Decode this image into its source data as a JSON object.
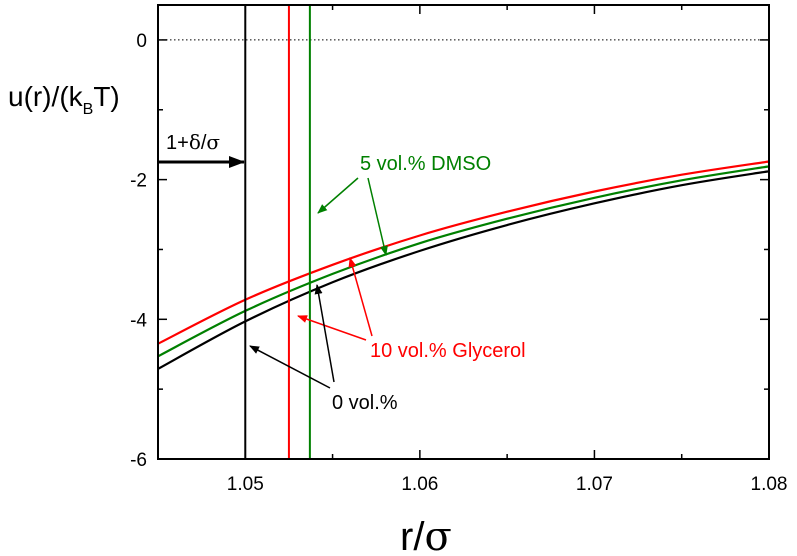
{
  "chart_data": {
    "type": "line",
    "xlabel": {
      "main": "r/",
      "sym": "σ"
    },
    "ylabel": {
      "pre": "u(r)/(k",
      "sub": "B",
      "post": "T)"
    },
    "xlim": [
      1.045,
      1.08
    ],
    "ylim": [
      -6,
      0.5
    ],
    "xticks": [
      1.05,
      1.06,
      1.07,
      1.08
    ],
    "xtick_labels": [
      "1.05",
      "1.06",
      "1.07",
      "1.08"
    ],
    "yticks": [
      -6,
      -4,
      -2,
      0
    ],
    "ytick_labels": [
      "-6",
      "-4",
      "-2",
      "0"
    ],
    "zero_line": {
      "y": 0,
      "style": "dotted"
    },
    "colors": {
      "black": "#000000",
      "red": "#ff0000",
      "green": "#008000"
    },
    "series": [
      {
        "color": "#ff0000",
        "x": [
          1.045,
          1.05,
          1.055,
          1.06,
          1.065,
          1.07,
          1.075,
          1.08
        ],
        "y": [
          -4.35,
          -3.72,
          -3.22,
          -2.8,
          -2.46,
          -2.17,
          -1.93,
          -1.74
        ]
      },
      {
        "color": "#008000",
        "x": [
          1.045,
          1.05,
          1.055,
          1.06,
          1.065,
          1.07,
          1.075,
          1.08
        ],
        "y": [
          -4.53,
          -3.88,
          -3.35,
          -2.91,
          -2.56,
          -2.26,
          -2.01,
          -1.81
        ]
      },
      {
        "color": "#000000",
        "x": [
          1.045,
          1.05,
          1.055,
          1.06,
          1.065,
          1.07,
          1.075,
          1.08
        ],
        "y": [
          -4.71,
          -4.03,
          -3.47,
          -3.02,
          -2.65,
          -2.34,
          -2.08,
          -1.88
        ]
      }
    ],
    "vlines": [
      {
        "x": 1.05,
        "color": "#000000"
      },
      {
        "x": 1.0525,
        "color": "#ff0000"
      },
      {
        "x": 1.0537,
        "color": "#008000"
      }
    ],
    "annotations": {
      "delta": {
        "pre": "1+",
        "sym": "δ",
        "mid": "/",
        "sym2": "σ"
      },
      "dmso": "5 vol.% DMSO",
      "glycerol": "10 vol.% Glycerol",
      "zero": "0 vol.%"
    }
  }
}
